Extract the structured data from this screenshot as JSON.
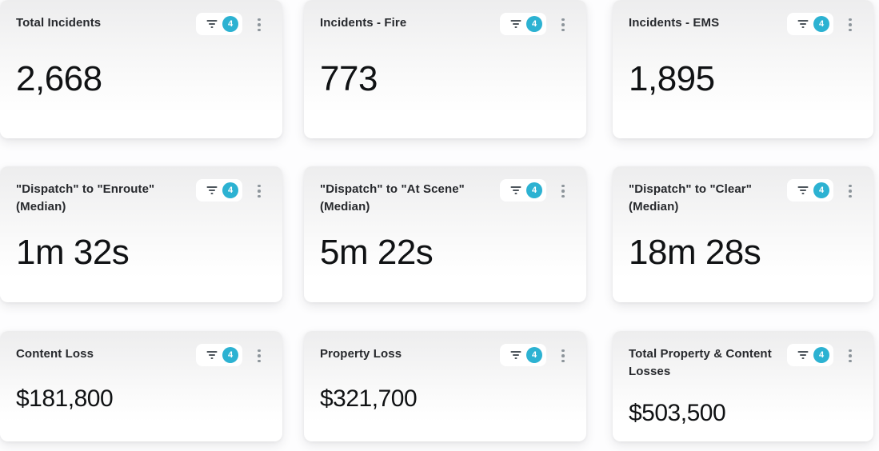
{
  "colors": {
    "badge_accent": "#2cb2d2",
    "card_top": "#ededee",
    "page_background": "#fdfdfe",
    "title_text": "#27292d",
    "value_text": "#101214"
  },
  "cards": [
    {
      "title": "Total Incidents",
      "value": "2,668",
      "filter_count": "4"
    },
    {
      "title": "Incidents - Fire",
      "value": "773",
      "filter_count": "4"
    },
    {
      "title": "Incidents - EMS",
      "value": "1,895",
      "filter_count": "4"
    },
    {
      "title": "\"Dispatch\" to \"Enroute\" (Median)",
      "value": "1m 32s",
      "filter_count": "4"
    },
    {
      "title": "\"Dispatch\" to \"At Scene\" (Median)",
      "value": "5m 22s",
      "filter_count": "4"
    },
    {
      "title": "\"Dispatch\" to \"Clear\" (Median)",
      "value": "18m 28s",
      "filter_count": "4"
    },
    {
      "title": "Content Loss",
      "value": "$181,800",
      "filter_count": "4"
    },
    {
      "title": "Property Loss",
      "value": "$321,700",
      "filter_count": "4"
    },
    {
      "title": "Total Property & Content Losses",
      "value": "$503,500",
      "filter_count": "4"
    }
  ]
}
